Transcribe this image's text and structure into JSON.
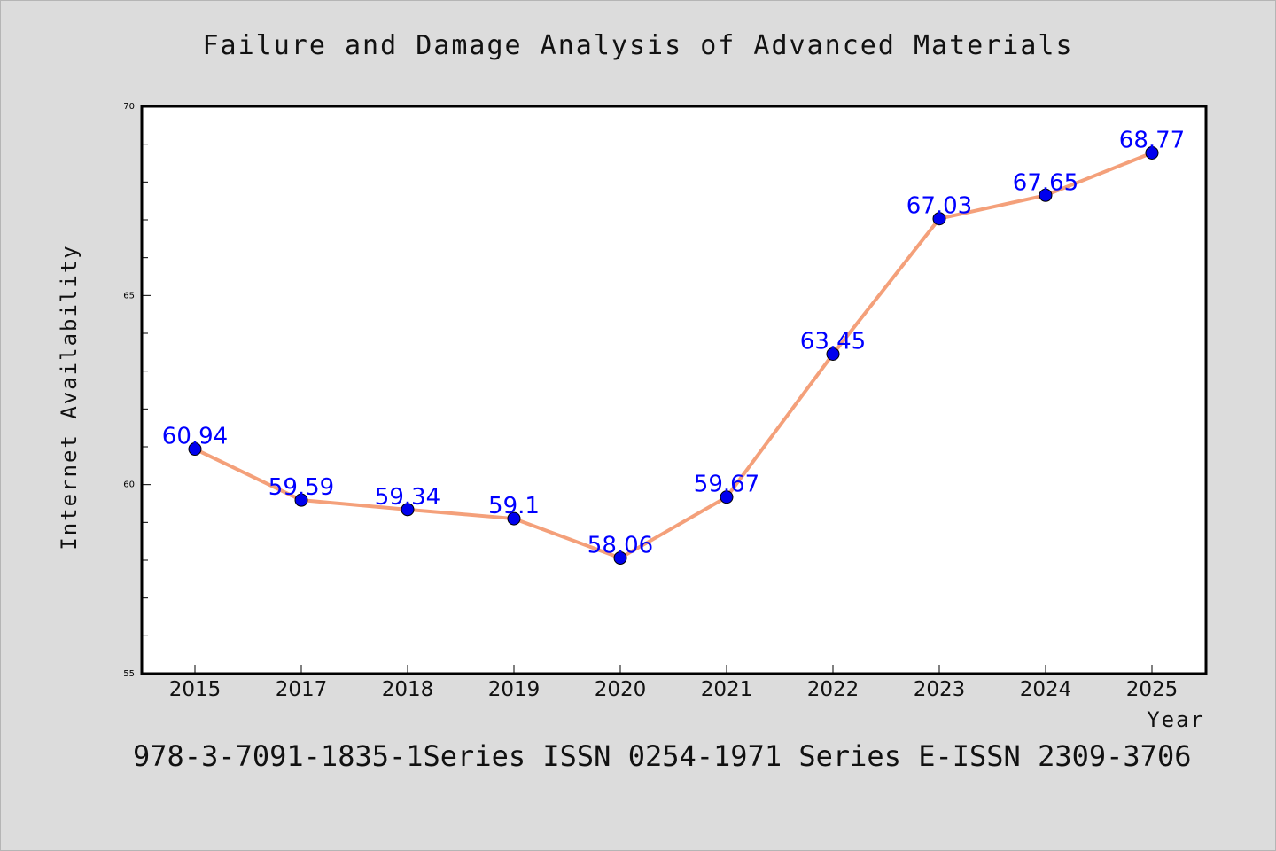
{
  "chart_data": {
    "type": "line",
    "title": "Failure and Damage Analysis of Advanced Materials",
    "xlabel": "Year",
    "ylabel": "Internet Availability",
    "categories": [
      "2015",
      "2017",
      "2018",
      "2019",
      "2020",
      "2021",
      "2022",
      "2023",
      "2024",
      "2025"
    ],
    "series": [
      {
        "values": [
          60.94,
          59.59,
          59.34,
          59.1,
          58.06,
          59.67,
          63.45,
          67.03,
          67.65,
          68.77
        ],
        "labels": [
          "60.94",
          "59.59",
          "59.34",
          "59.1",
          "58.06",
          "59.67",
          "63.45",
          "67.03",
          "67.65",
          "68.77"
        ]
      }
    ],
    "ylim": [
      55,
      70
    ],
    "yticks": [
      "55",
      "60",
      "65",
      "70"
    ],
    "grid": false,
    "legend": "none",
    "colors": {
      "line": "#f4a07a",
      "marker": "#0000ee",
      "data_label": "#0000ff",
      "background": "#dcdcdc",
      "plot_background": "#ffffff"
    }
  },
  "footer": {
    "text": "978-3-7091-1835-1Series ISSN 0254-1971 Series E-ISSN 2309-3706"
  }
}
